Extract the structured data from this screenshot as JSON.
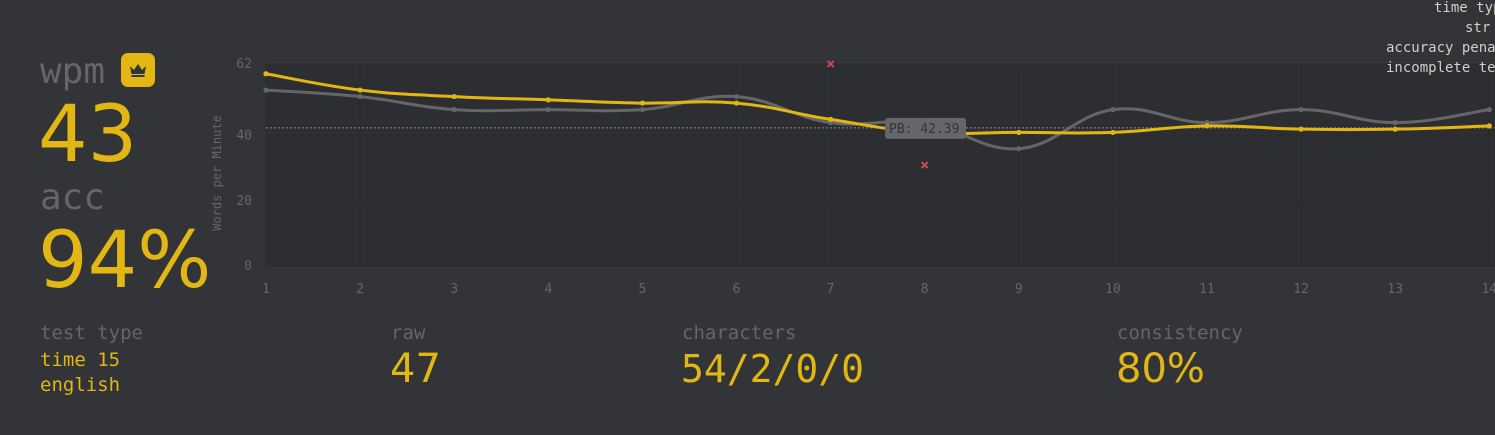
{
  "stats": {
    "wpm_label": "wpm",
    "wpm_value": "43",
    "acc_label": "acc",
    "acc_value": "94%"
  },
  "details": {
    "test_type_label": "test type",
    "test_type_line1": "time 15",
    "test_type_line2": "english",
    "raw_label": "raw",
    "raw_value": "47",
    "characters_label": "characters",
    "characters_value": "54/2/0/0",
    "consistency_label": "consistency",
    "consistency_value": "80%"
  },
  "info": {
    "line1": "time typ",
    "line2": "str",
    "line3": "accuracy pena",
    "line4": "incomplete te"
  },
  "colors": {
    "background": "#323437",
    "accent": "#e2b714",
    "sub": "#646669",
    "raw_line": "#646669",
    "error": "#ca4754",
    "text": "#d1d0c5"
  },
  "chart_data": {
    "type": "line",
    "ylabel": "Words per Minute",
    "xlabel": "",
    "x": [
      1,
      2,
      3,
      4,
      5,
      6,
      7,
      8,
      9,
      10,
      11,
      12,
      13,
      14
    ],
    "ylim": [
      0,
      62
    ],
    "yticks": [
      0,
      20,
      40,
      62
    ],
    "grid": true,
    "series": [
      {
        "name": "wpm",
        "color": "#e2b714",
        "values": [
          59,
          54,
          52,
          51,
          50,
          50,
          45,
          41,
          41,
          41,
          43,
          42,
          42,
          43
        ]
      },
      {
        "name": "raw",
        "color": "#646669",
        "values": [
          54,
          52,
          48,
          48,
          48,
          52,
          44,
          44,
          36,
          48,
          44,
          48,
          44,
          48
        ]
      }
    ],
    "errors": [
      {
        "x": 7,
        "y": 62
      },
      {
        "x": 8,
        "y": 31
      }
    ],
    "pb": {
      "value": 42.39,
      "label": "PB: 42.39"
    }
  }
}
